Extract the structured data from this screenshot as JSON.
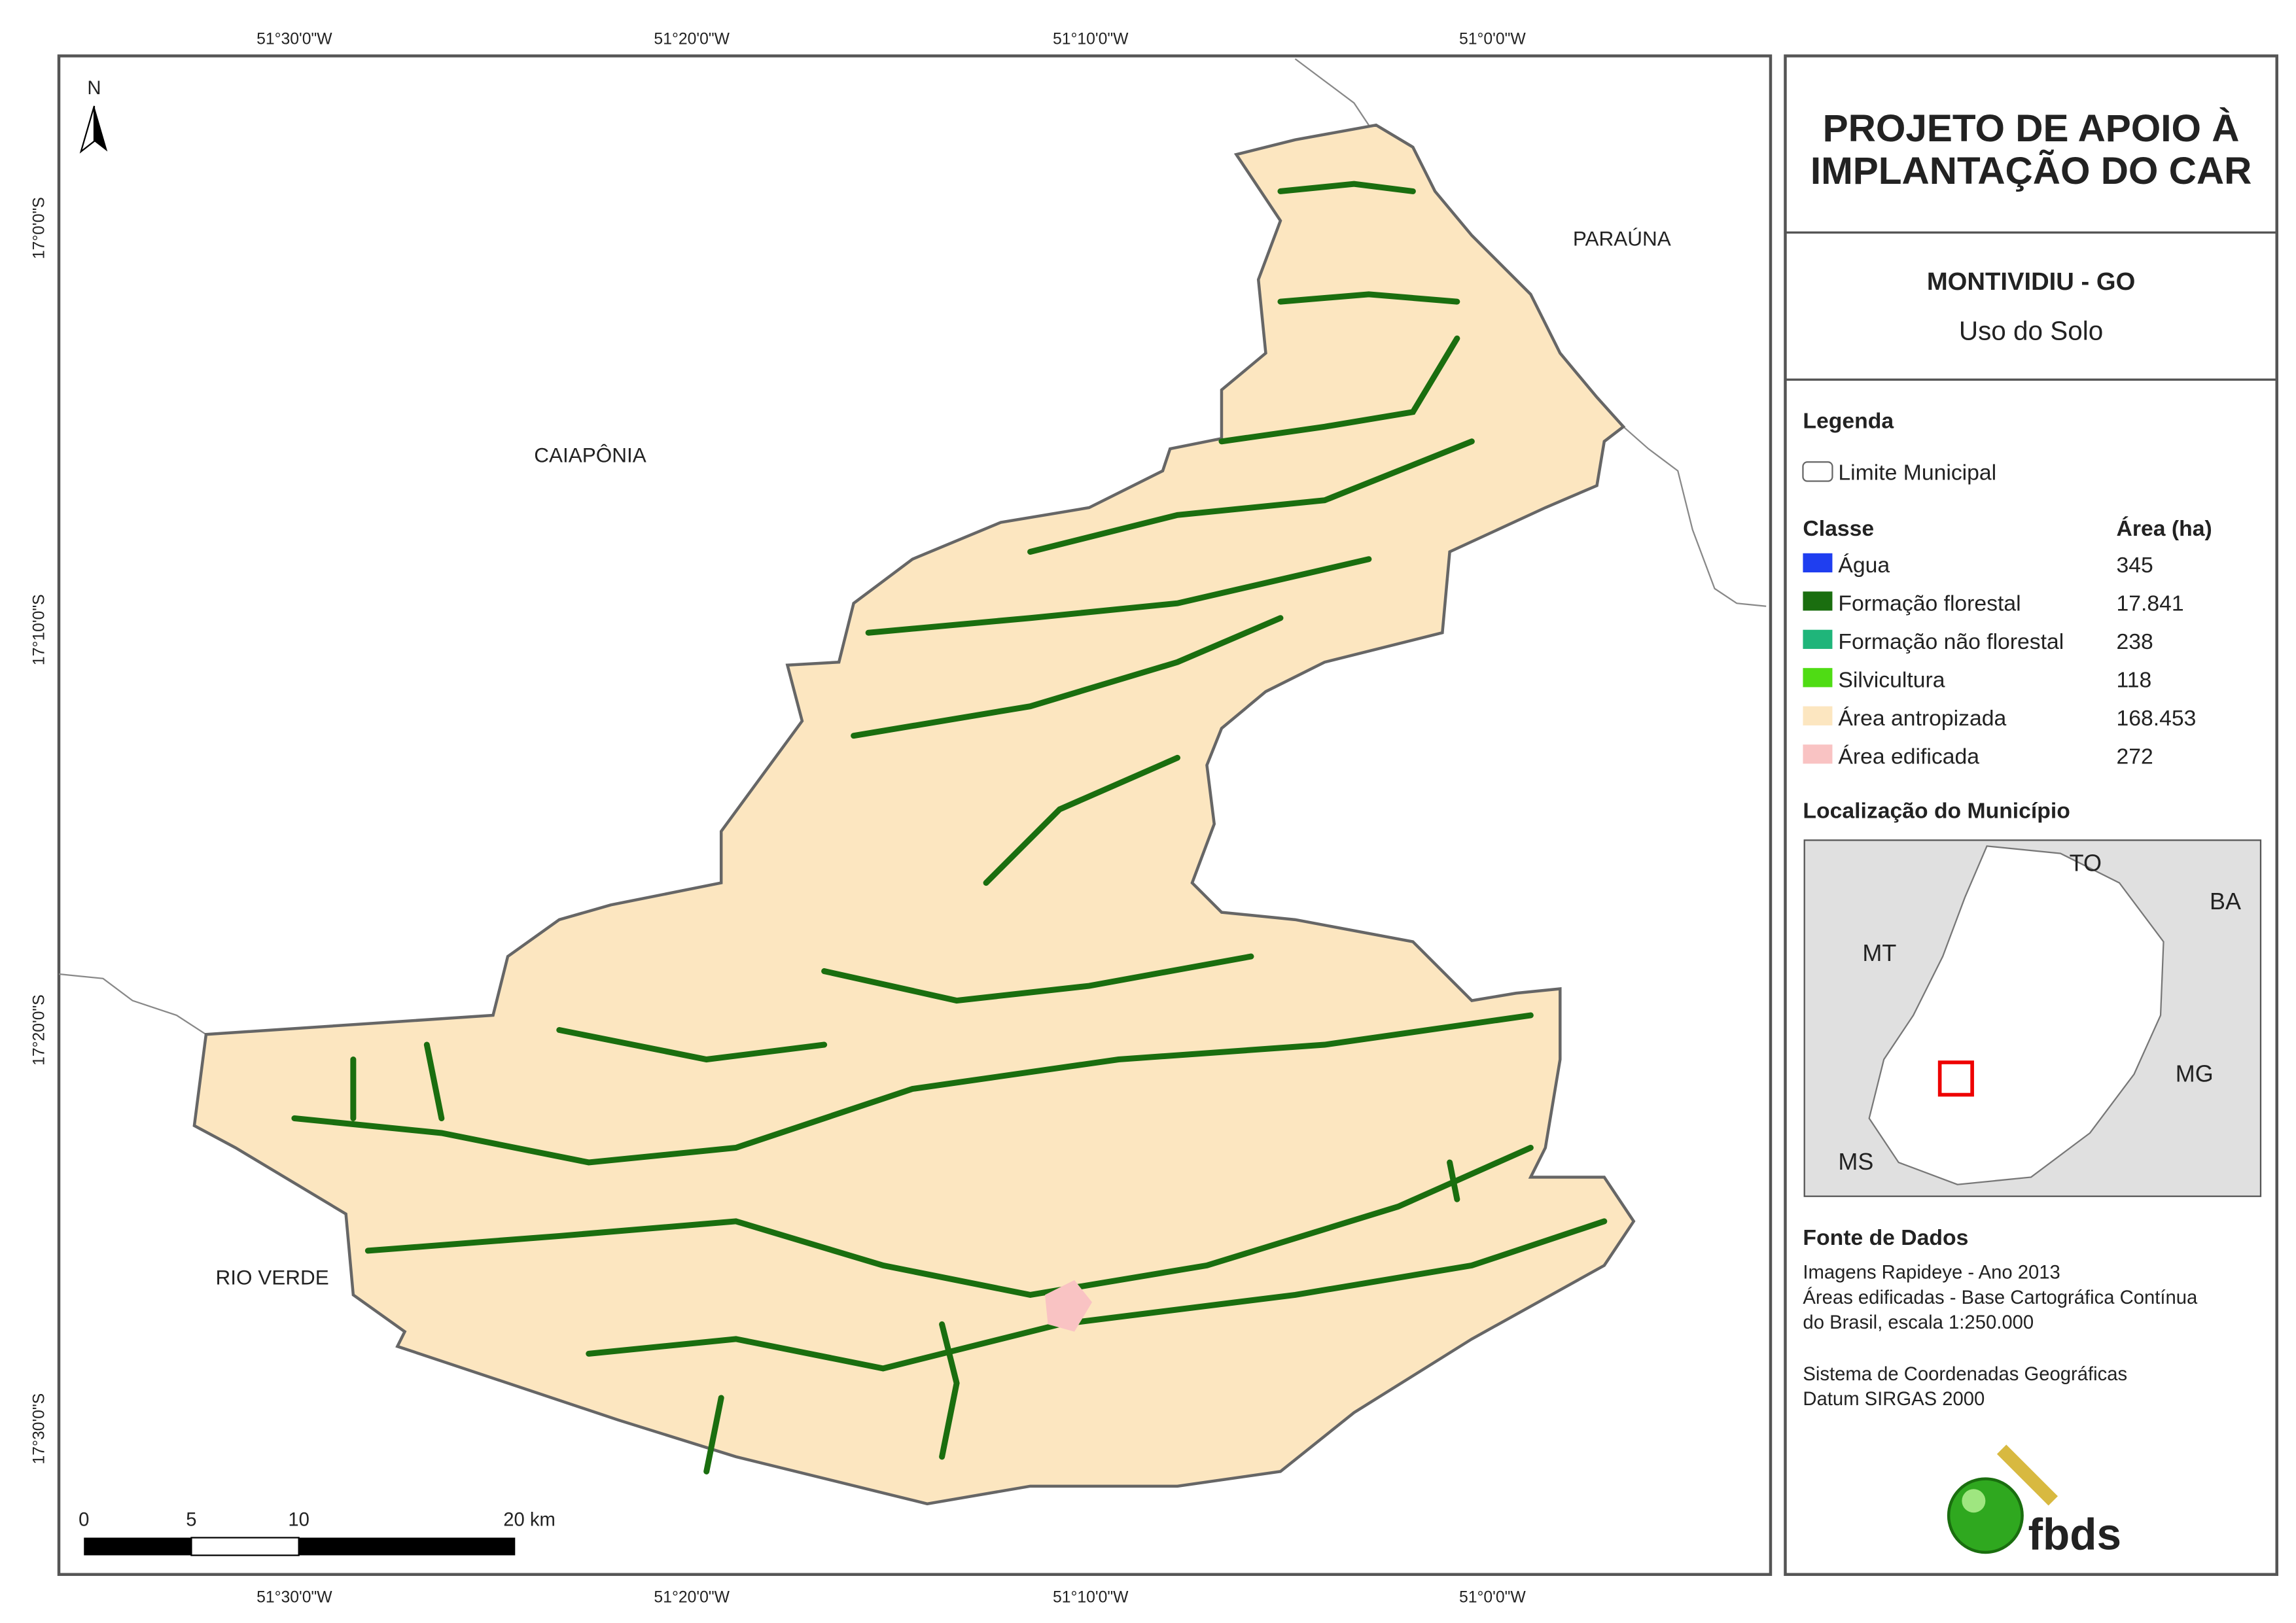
{
  "map": {
    "graticule": {
      "longitude": [
        "51°30'0\"W",
        "51°20'0\"W",
        "51°10'0\"W",
        "51°0'0\"W"
      ],
      "latitude": [
        "17°0'0\"S",
        "17°10'0\"S",
        "17°20'0\"S",
        "17°30'0\"S"
      ]
    },
    "places": [
      "CAIAPÔNIA",
      "PARAÚNA",
      "RIO VERDE"
    ],
    "north": "N",
    "scale_bar": [
      "0",
      "5",
      "10",
      "20 km"
    ]
  },
  "panel": {
    "title": [
      "PROJETO DE APOIO À",
      "IMPLANTAÇÃO DO CAR"
    ],
    "municipality": "MONTIVIDIU - GO",
    "subtitle": "Uso do Solo",
    "legend": {
      "heading": "Legenda",
      "boundary": "Limite Municipal",
      "class_header": "Classe",
      "area_header": "Área (ha)",
      "classes": [
        {
          "name": "Água",
          "area": "345",
          "color": "#1f3ef0"
        },
        {
          "name": "Formação florestal",
          "area": "17.841",
          "color": "#1a6e0f"
        },
        {
          "name": "Formação não florestal",
          "area": "238",
          "color": "#1fb57a"
        },
        {
          "name": "Silvicultura",
          "area": "118",
          "color": "#4fdc14"
        },
        {
          "name": "Área antropizada",
          "area": "168.453",
          "color": "#fce6c0"
        },
        {
          "name": "Área edificada",
          "area": "272",
          "color": "#f9c3c3"
        }
      ]
    },
    "location": {
      "heading": "Localização do Município",
      "labels": [
        "TO",
        "BA",
        "MT",
        "MG",
        "MS"
      ]
    },
    "sources": {
      "heading": "Fonte de Dados",
      "lines": [
        "Imagens Rapideye - Ano 2013",
        "Áreas edificadas - Base Cartográfica Contínua",
        "do Brasil, escala 1:250.000",
        "Sistema de Coordenadas Geográficas",
        "Datum SIRGAS 2000"
      ]
    },
    "logo": "fbds"
  }
}
